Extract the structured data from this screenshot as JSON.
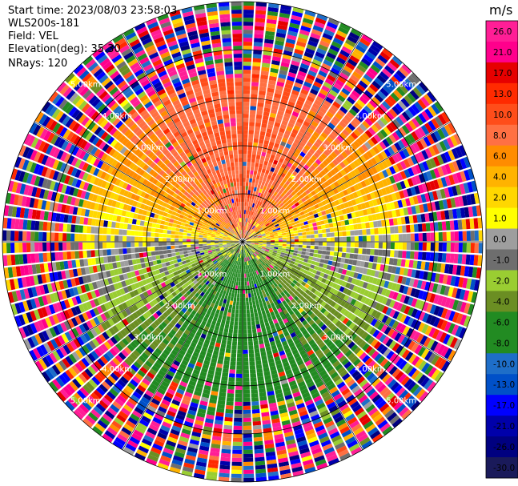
{
  "info": {
    "start_time": "Start time: 2023/08/03 23:58:03",
    "instrument": "WLS200s-181",
    "field": "Field: VEL",
    "elevation": "Elevation(deg): 35.30",
    "nrays": "NRays: 120"
  },
  "chart_data": {
    "type": "heatmap",
    "projection": "polar-ppi",
    "title": "",
    "n_rays": 120,
    "range_max_km": 5.0,
    "range_ring_labels": [
      "1.00km",
      "2.00km",
      "3.00km",
      "4.00km",
      "5.00km"
    ],
    "colorbar": {
      "unit": "m/s",
      "vmin": -30.0,
      "vmax": 30.0,
      "ticks": [
        "26.0",
        "21.0",
        "17.0",
        "13.0",
        "10.0",
        "8.0",
        "6.0",
        "4.0",
        "2.0",
        "1.0",
        "0.0",
        "-1.0",
        "-2.0",
        "-4.0",
        "-6.0",
        "-8.0",
        "-10.0",
        "-13.0",
        "-17.0",
        "-21.0",
        "-26.0",
        "-30.0"
      ],
      "colors": [
        "#ff1e96",
        "#ff008c",
        "#e60000",
        "#ff2a00",
        "#ff4d1a",
        "#ff7043",
        "#ff8c00",
        "#ffb300",
        "#ffd700",
        "#ffff00",
        "#9e9e9e",
        "#6e6e6e",
        "#9acd32",
        "#6b8e23",
        "#228b22",
        "#228b22",
        "#1e6ec8",
        "#0050c8",
        "#0000ff",
        "#0000aa",
        "#000080",
        "#1a1a5a"
      ]
    },
    "velocity_pattern": "north half positive (2 to 10 m/s, peak ~8 m/s toward north), south half negative (-2 to -10 m/s, peak ~-8 m/s toward south), near-zero at east-west, noise beyond ~3.5 km"
  }
}
